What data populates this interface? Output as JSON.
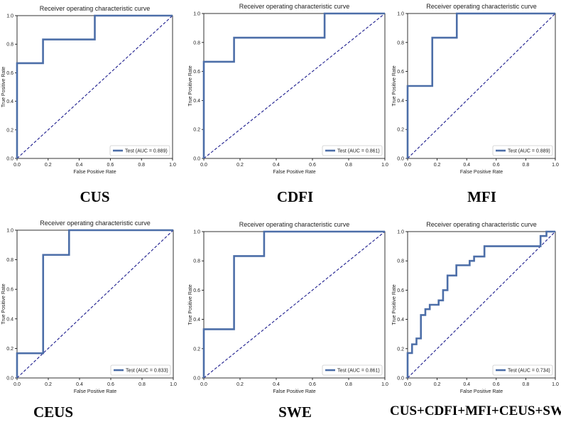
{
  "chart_data": [
    {
      "type": "line",
      "title": "Receiver operating characteristic curve",
      "xlabel": "False Positive Rate",
      "ylabel": "True Positive Rate",
      "xlim": [
        0,
        1
      ],
      "ylim": [
        0,
        1
      ],
      "xticks": [
        "0.0",
        "0.2",
        "0.4",
        "0.6",
        "0.8",
        "1.0"
      ],
      "yticks": [
        "0.0",
        "0.2",
        "0.4",
        "0.6",
        "0.8",
        "1.0"
      ],
      "legend": "lower-right",
      "grid": false,
      "series": [
        {
          "name": "Test (AUC = 0.889)",
          "color": "#4c6ea8",
          "x": [
            0,
            0,
            0.167,
            0.167,
            0.5,
            0.5,
            1.0
          ],
          "y": [
            0,
            0.667,
            0.667,
            0.833,
            0.833,
            1.0,
            1.0
          ]
        }
      ],
      "diagonal_color": "#1a1a8c",
      "caption": "CUS"
    },
    {
      "type": "line",
      "title": "Receiver operating characteristic curve",
      "xlabel": "False Positive Rate",
      "ylabel": "True Positive Rate",
      "xlim": [
        0,
        1
      ],
      "ylim": [
        0,
        1
      ],
      "xticks": [
        "0.0",
        "0.2",
        "0.4",
        "0.6",
        "0.8",
        "1.0"
      ],
      "yticks": [
        "0.0",
        "0.2",
        "0.4",
        "0.6",
        "0.8",
        "1.0"
      ],
      "legend": "lower-right",
      "grid": false,
      "series": [
        {
          "name": "Test (AUC = 0.861)",
          "color": "#4c6ea8",
          "x": [
            0,
            0,
            0.167,
            0.167,
            0.667,
            0.667,
            1.0
          ],
          "y": [
            0,
            0.667,
            0.667,
            0.833,
            0.833,
            1.0,
            1.0
          ]
        }
      ],
      "diagonal_color": "#1a1a8c",
      "caption": "CDFI"
    },
    {
      "type": "line",
      "title": "Receiver operating characteristic curve",
      "xlabel": "False Positive Rate",
      "ylabel": "True Positive Rate",
      "xlim": [
        0,
        1
      ],
      "ylim": [
        0,
        1
      ],
      "xticks": [
        "0.0",
        "0.2",
        "0.4",
        "0.6",
        "0.8",
        "1.0"
      ],
      "yticks": [
        "0.0",
        "0.2",
        "0.4",
        "0.6",
        "0.8",
        "1.0"
      ],
      "legend": "lower-right",
      "grid": false,
      "series": [
        {
          "name": "Test (AUC = 0.889)",
          "color": "#4c6ea8",
          "x": [
            0,
            0,
            0.167,
            0.167,
            0.333,
            0.333,
            1.0
          ],
          "y": [
            0,
            0.5,
            0.5,
            0.833,
            0.833,
            1.0,
            1.0
          ]
        }
      ],
      "diagonal_color": "#1a1a8c",
      "caption": "MFI"
    },
    {
      "type": "line",
      "title": "Receiver operating characteristic curve",
      "xlabel": "False Positive Rate",
      "ylabel": "True Positive Rate",
      "xlim": [
        0,
        1
      ],
      "ylim": [
        0,
        1
      ],
      "xticks": [
        "0.0",
        "0.2",
        "0.4",
        "0.6",
        "0.8",
        "1.0"
      ],
      "yticks": [
        "0.0",
        "0.2",
        "0.4",
        "0.6",
        "0.8",
        "1.0"
      ],
      "legend": "lower-right",
      "grid": false,
      "series": [
        {
          "name": "Test (AUC = 0.833)",
          "color": "#4c6ea8",
          "x": [
            0,
            0,
            0.167,
            0.167,
            0.333,
            0.333,
            1.0
          ],
          "y": [
            0,
            0.167,
            0.167,
            0.833,
            0.833,
            1.0,
            1.0
          ]
        }
      ],
      "diagonal_color": "#1a1a8c",
      "caption": "CEUS"
    },
    {
      "type": "line",
      "title": "Receiver operating characteristic curve",
      "xlabel": "False Positive Rate",
      "ylabel": "True Positive Rate",
      "xlim": [
        0,
        1
      ],
      "ylim": [
        0,
        1
      ],
      "xticks": [
        "0.0",
        "0.2",
        "0.4",
        "0.6",
        "0.8",
        "1.0"
      ],
      "yticks": [
        "0.0",
        "0.2",
        "0.4",
        "0.6",
        "0.8",
        "1.0"
      ],
      "legend": "lower-right",
      "grid": false,
      "series": [
        {
          "name": "Test (AUC = 0.861)",
          "color": "#4c6ea8",
          "x": [
            0,
            0,
            0.167,
            0.167,
            0.333,
            0.333,
            1.0
          ],
          "y": [
            0,
            0.333,
            0.333,
            0.833,
            0.833,
            1.0,
            1.0
          ]
        }
      ],
      "diagonal_color": "#1a1a8c",
      "caption": "SWE"
    },
    {
      "type": "line",
      "title": "Receiver operating characteristic curve",
      "xlabel": "False Positive Rate",
      "ylabel": "True Positive Rate",
      "xlim": [
        0,
        1
      ],
      "ylim": [
        0,
        1
      ],
      "xticks": [
        "0.0",
        "0.2",
        "0.4",
        "0.6",
        "0.8",
        "1.0"
      ],
      "yticks": [
        "0.0",
        "0.2",
        "0.4",
        "0.6",
        "0.8",
        "1.0"
      ],
      "legend": "lower-right",
      "grid": false,
      "series": [
        {
          "name": "Test (AUC = 0.734)",
          "color": "#4c6ea8",
          "x": [
            0,
            0,
            0.03,
            0.03,
            0.06,
            0.06,
            0.09,
            0.09,
            0.12,
            0.12,
            0.15,
            0.15,
            0.18,
            0.18,
            0.21,
            0.21,
            0.24,
            0.24,
            0.27,
            0.27,
            0.3,
            0.3,
            0.33,
            0.33,
            0.42,
            0.42,
            0.45,
            0.45,
            0.52,
            0.52,
            0.9,
            0.9,
            0.94,
            0.94,
            1.0
          ],
          "y": [
            0,
            0.17,
            0.17,
            0.23,
            0.23,
            0.27,
            0.27,
            0.43,
            0.43,
            0.47,
            0.47,
            0.5,
            0.5,
            0.5,
            0.5,
            0.53,
            0.53,
            0.6,
            0.6,
            0.7,
            0.7,
            0.7,
            0.7,
            0.77,
            0.77,
            0.8,
            0.8,
            0.83,
            0.83,
            0.9,
            0.9,
            0.97,
            0.97,
            1.0,
            1.0
          ]
        }
      ],
      "diagonal_color": "#1a1a8c",
      "caption": "CUS+CDFI+MFI+CEUS+SWE"
    }
  ]
}
